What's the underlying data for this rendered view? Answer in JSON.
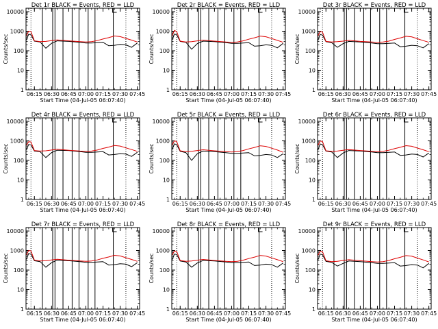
{
  "figure": {
    "yticks": [
      "1",
      "10",
      "100",
      "1000",
      "10000"
    ],
    "xticks": [
      "06:15",
      "06:30",
      "06:45",
      "07:00",
      "07:15",
      "07:30",
      "07:45"
    ],
    "xlabel": "Start Time (04-Jul-05 06:07:40)",
    "ylabel": "Counts/sec",
    "colors": {
      "events": "#000000",
      "lld": "#dd0000",
      "axes": "#000000"
    }
  },
  "chart_data": [
    {
      "type": "line",
      "title": "Det 1r BLACK = Events, RED = LLD",
      "xlabel": "Start Time (04-Jul-05 06:07:40)",
      "ylabel": "Counts/sec",
      "yscale": "log",
      "ylim": [
        1,
        15000
      ],
      "xlim": [
        "06:07:40",
        "07:47:00"
      ],
      "x": [
        "06:08",
        "06:10",
        "06:12",
        "06:15",
        "06:20",
        "06:25",
        "06:30",
        "06:35",
        "06:45",
        "06:55",
        "07:00",
        "07:05",
        "07:10",
        "07:15",
        "07:20",
        "07:25",
        "07:30",
        "07:35",
        "07:40",
        "07:45"
      ],
      "series": [
        {
          "name": "Events",
          "values": [
            350,
            700,
            650,
            310,
            280,
            135,
            240,
            320,
            300,
            270,
            250,
            250,
            260,
            270,
            180,
            190,
            210,
            200,
            150,
            250
          ]
        },
        {
          "name": "LLD",
          "values": [
            600,
            1000,
            950,
            320,
            290,
            300,
            330,
            360,
            320,
            290,
            280,
            290,
            330,
            400,
            470,
            570,
            530,
            430,
            350,
            280
          ]
        }
      ],
      "vlines_dotted": [
        "06:12",
        "07:35"
      ],
      "vlines_solid": [
        "06:22",
        "06:31",
        "06:33",
        "06:40",
        "06:48",
        "06:54",
        "07:02",
        "07:08",
        "07:24"
      ]
    },
    {
      "type": "line",
      "title": "Det 2r BLACK = Events, RED = LLD",
      "xlabel": "Start Time (04-Jul-05 06:07:40)",
      "ylabel": "Counts/sec",
      "yscale": "log",
      "ylim": [
        1,
        15000
      ],
      "xlim": [
        "06:07:40",
        "07:47:00"
      ],
      "x": [
        "06:08",
        "06:10",
        "06:12",
        "06:15",
        "06:20",
        "06:25",
        "06:30",
        "06:35",
        "06:45",
        "06:55",
        "07:00",
        "07:05",
        "07:10",
        "07:15",
        "07:20",
        "07:25",
        "07:30",
        "07:35",
        "07:40",
        "07:45"
      ],
      "series": [
        {
          "name": "Events",
          "values": [
            350,
            720,
            650,
            300,
            270,
            120,
            230,
            310,
            290,
            260,
            240,
            240,
            250,
            260,
            170,
            180,
            200,
            190,
            140,
            240
          ]
        },
        {
          "name": "LLD",
          "values": [
            600,
            1100,
            950,
            310,
            280,
            290,
            320,
            350,
            310,
            280,
            270,
            280,
            320,
            390,
            460,
            560,
            520,
            420,
            340,
            270
          ]
        }
      ],
      "vlines_dotted": [
        "06:12",
        "07:35"
      ],
      "vlines_solid": [
        "06:22",
        "06:31",
        "06:33",
        "06:40",
        "06:48",
        "06:54",
        "07:02",
        "07:08",
        "07:24"
      ]
    },
    {
      "type": "line",
      "title": "Det 3r BLACK = Events, RED = LLD",
      "xlabel": "Start Time (04-Jul-05 06:07:40)",
      "ylabel": "Counts/sec",
      "yscale": "log",
      "ylim": [
        1,
        15000
      ],
      "xlim": [
        "06:07:40",
        "07:47:00"
      ],
      "x": [
        "06:08",
        "06:10",
        "06:12",
        "06:15",
        "06:20",
        "06:25",
        "06:30",
        "06:35",
        "06:45",
        "06:55",
        "07:00",
        "07:05",
        "07:10",
        "07:15",
        "07:20",
        "07:25",
        "07:30",
        "07:35",
        "07:40",
        "07:45"
      ],
      "series": [
        {
          "name": "Events",
          "values": [
            340,
            680,
            630,
            290,
            260,
            150,
            230,
            300,
            280,
            250,
            230,
            230,
            240,
            250,
            160,
            170,
            190,
            180,
            140,
            230
          ]
        },
        {
          "name": "LLD",
          "values": [
            580,
            950,
            900,
            300,
            280,
            290,
            310,
            340,
            300,
            280,
            270,
            280,
            310,
            380,
            450,
            550,
            510,
            410,
            330,
            270
          ]
        }
      ],
      "vlines_dotted": [
        "06:12",
        "07:35"
      ],
      "vlines_solid": [
        "06:22",
        "06:31",
        "06:33",
        "06:40",
        "06:48",
        "06:54",
        "07:02",
        "07:08",
        "07:24"
      ]
    },
    {
      "type": "line",
      "title": "Det 4r BLACK = Events, RED = LLD",
      "xlabel": "Start Time (04-Jul-05 06:07:40)",
      "ylabel": "Counts/sec",
      "yscale": "log",
      "ylim": [
        1,
        15000
      ],
      "xlim": [
        "06:07:40",
        "07:47:00"
      ],
      "x": [
        "06:08",
        "06:10",
        "06:12",
        "06:15",
        "06:20",
        "06:25",
        "06:30",
        "06:35",
        "06:45",
        "06:55",
        "07:00",
        "07:05",
        "07:10",
        "07:15",
        "07:20",
        "07:25",
        "07:30",
        "07:35",
        "07:40",
        "07:45"
      ],
      "series": [
        {
          "name": "Events",
          "values": [
            350,
            650,
            620,
            300,
            280,
            140,
            250,
            330,
            320,
            280,
            260,
            260,
            270,
            280,
            190,
            200,
            220,
            210,
            160,
            260
          ]
        },
        {
          "name": "LLD",
          "values": [
            600,
            900,
            880,
            320,
            300,
            310,
            340,
            370,
            330,
            300,
            290,
            300,
            340,
            410,
            480,
            580,
            540,
            440,
            360,
            290
          ]
        }
      ],
      "vlines_dotted": [
        "06:12",
        "07:35"
      ],
      "vlines_solid": [
        "06:22",
        "06:31",
        "06:33",
        "06:40",
        "06:48",
        "06:54",
        "07:02",
        "07:08",
        "07:24"
      ]
    },
    {
      "type": "line",
      "title": "Det 5r BLACK = Events, RED = LLD",
      "xlabel": "Start Time (04-Jul-05 06:07:40)",
      "ylabel": "Counts/sec",
      "yscale": "log",
      "ylim": [
        1,
        15000
      ],
      "xlim": [
        "06:07:40",
        "07:47:00"
      ],
      "x": [
        "06:08",
        "06:10",
        "06:12",
        "06:15",
        "06:20",
        "06:25",
        "06:30",
        "06:35",
        "06:45",
        "06:55",
        "07:00",
        "07:05",
        "07:10",
        "07:15",
        "07:20",
        "07:25",
        "07:30",
        "07:35",
        "07:40",
        "07:45"
      ],
      "series": [
        {
          "name": "Events",
          "values": [
            360,
            700,
            640,
            290,
            250,
            100,
            220,
            300,
            280,
            250,
            230,
            230,
            240,
            250,
            170,
            180,
            200,
            190,
            140,
            220
          ]
        },
        {
          "name": "LLD",
          "values": [
            620,
            1000,
            920,
            310,
            280,
            290,
            320,
            350,
            310,
            280,
            270,
            280,
            320,
            390,
            460,
            560,
            520,
            420,
            340,
            260
          ]
        }
      ],
      "vlines_dotted": [
        "06:12",
        "07:35"
      ],
      "vlines_solid": [
        "06:22",
        "06:31",
        "06:33",
        "06:40",
        "06:48",
        "06:54",
        "07:02",
        "07:08",
        "07:24"
      ]
    },
    {
      "type": "line",
      "title": "Det 6r BLACK = Events, RED = LLD",
      "xlabel": "Start Time (04-Jul-05 06:07:40)",
      "ylabel": "Counts/sec",
      "yscale": "log",
      "ylim": [
        1,
        15000
      ],
      "xlim": [
        "06:07:40",
        "07:47:00"
      ],
      "x": [
        "06:08",
        "06:10",
        "06:12",
        "06:15",
        "06:20",
        "06:25",
        "06:30",
        "06:35",
        "06:45",
        "06:55",
        "07:00",
        "07:05",
        "07:10",
        "07:15",
        "07:20",
        "07:25",
        "07:30",
        "07:35",
        "07:40",
        "07:45"
      ],
      "series": [
        {
          "name": "Events",
          "values": [
            340,
            690,
            640,
            300,
            270,
            140,
            240,
            320,
            300,
            270,
            250,
            250,
            260,
            270,
            180,
            190,
            210,
            200,
            150,
            240
          ]
        },
        {
          "name": "LLD",
          "values": [
            590,
            980,
            930,
            310,
            290,
            300,
            330,
            360,
            320,
            290,
            280,
            290,
            330,
            400,
            470,
            570,
            530,
            430,
            350,
            280
          ]
        }
      ],
      "vlines_dotted": [
        "06:12",
        "07:35"
      ],
      "vlines_solid": [
        "06:22",
        "06:31",
        "06:33",
        "06:40",
        "06:48",
        "06:54",
        "07:02",
        "07:08",
        "07:24"
      ]
    },
    {
      "type": "line",
      "title": "Det 7r BLACK = Events, RED = LLD",
      "xlabel": "Start Time (04-Jul-05 06:07:40)",
      "ylabel": "Counts/sec",
      "yscale": "log",
      "ylim": [
        1,
        15000
      ],
      "xlim": [
        "06:07:40",
        "07:47:00"
      ],
      "x": [
        "06:08",
        "06:10",
        "06:12",
        "06:15",
        "06:20",
        "06:25",
        "06:30",
        "06:35",
        "06:45",
        "06:55",
        "07:00",
        "07:05",
        "07:10",
        "07:15",
        "07:20",
        "07:25",
        "07:30",
        "07:35",
        "07:40",
        "07:45"
      ],
      "series": [
        {
          "name": "Events",
          "values": [
            350,
            710,
            660,
            300,
            270,
            140,
            240,
            320,
            300,
            270,
            250,
            250,
            260,
            270,
            180,
            190,
            210,
            200,
            150,
            240
          ]
        },
        {
          "name": "LLD",
          "values": [
            600,
            1000,
            950,
            320,
            290,
            300,
            330,
            360,
            320,
            290,
            280,
            290,
            330,
            400,
            470,
            570,
            530,
            430,
            350,
            280
          ]
        }
      ],
      "vlines_dotted": [
        "06:12",
        "07:35"
      ],
      "vlines_solid": [
        "06:22",
        "06:31",
        "06:33",
        "06:40",
        "06:48",
        "06:54",
        "07:02",
        "07:08",
        "07:24"
      ]
    },
    {
      "type": "line",
      "title": "Det 8r BLACK = Events, RED = LLD",
      "xlabel": "Start Time (04-Jul-05 06:07:40)",
      "ylabel": "Counts/sec",
      "yscale": "log",
      "ylim": [
        1,
        15000
      ],
      "xlim": [
        "06:07:40",
        "07:47:00"
      ],
      "x": [
        "06:08",
        "06:10",
        "06:12",
        "06:15",
        "06:20",
        "06:25",
        "06:30",
        "06:35",
        "06:45",
        "06:55",
        "07:00",
        "07:05",
        "07:10",
        "07:15",
        "07:20",
        "07:25",
        "07:30",
        "07:35",
        "07:40",
        "07:45"
      ],
      "series": [
        {
          "name": "Events",
          "values": [
            340,
            660,
            620,
            290,
            260,
            140,
            230,
            310,
            290,
            260,
            240,
            240,
            250,
            260,
            170,
            180,
            200,
            190,
            140,
            230
          ]
        },
        {
          "name": "LLD",
          "values": [
            590,
            950,
            900,
            310,
            280,
            290,
            320,
            350,
            310,
            280,
            270,
            280,
            320,
            390,
            460,
            560,
            520,
            420,
            340,
            270
          ]
        }
      ],
      "vlines_dotted": [
        "06:12",
        "07:35"
      ],
      "vlines_solid": [
        "06:22",
        "06:31",
        "06:33",
        "06:40",
        "06:48",
        "06:54",
        "07:02",
        "07:08",
        "07:24"
      ]
    },
    {
      "type": "line",
      "title": "Det 9r BLACK = Events, RED = LLD",
      "xlabel": "Start Time (04-Jul-05 06:07:40)",
      "ylabel": "Counts/sec",
      "yscale": "log",
      "ylim": [
        1,
        15000
      ],
      "xlim": [
        "06:07:40",
        "07:47:00"
      ],
      "x": [
        "06:08",
        "06:10",
        "06:12",
        "06:15",
        "06:20",
        "06:25",
        "06:30",
        "06:35",
        "06:45",
        "06:55",
        "07:00",
        "07:05",
        "07:10",
        "07:15",
        "07:20",
        "07:25",
        "07:30",
        "07:35",
        "07:40",
        "07:45"
      ],
      "series": [
        {
          "name": "Events",
          "values": [
            330,
            650,
            610,
            280,
            250,
            160,
            220,
            290,
            270,
            240,
            220,
            220,
            230,
            240,
            160,
            170,
            190,
            180,
            130,
            220
          ]
        },
        {
          "name": "LLD",
          "values": [
            570,
            930,
            880,
            300,
            270,
            280,
            310,
            340,
            300,
            270,
            260,
            270,
            310,
            380,
            450,
            550,
            510,
            410,
            330,
            260
          ]
        }
      ],
      "vlines_dotted": [
        "06:12",
        "07:35"
      ],
      "vlines_solid": [
        "06:22",
        "06:31",
        "06:33",
        "06:40",
        "06:48",
        "06:54",
        "07:02",
        "07:08",
        "07:24"
      ]
    }
  ]
}
